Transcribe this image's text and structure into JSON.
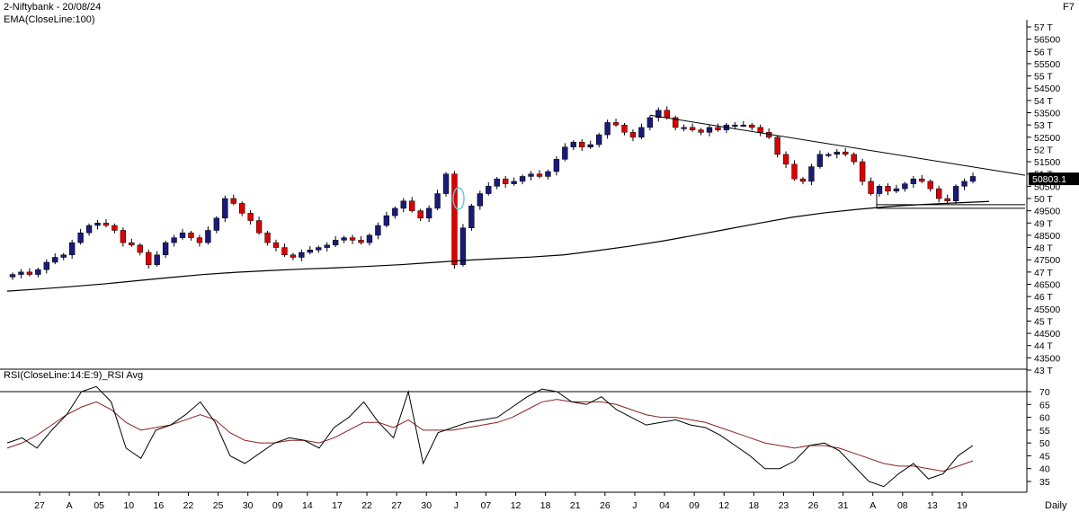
{
  "header": {
    "title": "2-Niftybank - 20/08/24",
    "indicator": "EMA(CloseLine:100)",
    "function_key": "F7",
    "period": "Daily"
  },
  "rsi_panel": {
    "title": "RSI(CloseLine:14:E:9)_RSI Avg"
  },
  "colors": {
    "up_candle": "#1a1a7a",
    "down_candle": "#dd0000",
    "price_line": "#000000",
    "rsi_line": "#000000",
    "rsi_avg_line": "#8b2020",
    "highlight_ellipse": "#5fc8d8",
    "current_tag_bg": "#000000"
  },
  "chart_data": [
    {
      "type": "candlestick",
      "title": "2-Niftybank - 20/08/24",
      "series_name": "EMA(CloseLine:100)",
      "ylim": [
        43000,
        57500
      ],
      "y_ticks": [
        "57 T",
        "56500",
        "56 T",
        "55500",
        "55 T",
        "54500",
        "54 T",
        "53500",
        "53 T",
        "52500",
        "52 T",
        "51500",
        "51 T",
        "50500",
        "50 T",
        "49500",
        "49 T",
        "48500",
        "48 T",
        "47500",
        "47 T",
        "46500",
        "46 T",
        "45500",
        "45 T",
        "44500",
        "44 T",
        "43500",
        "43 T"
      ],
      "current_price": "50803.1",
      "x_labels": [
        "27",
        "A",
        "05",
        "10",
        "16",
        "22",
        "25",
        "30",
        "09",
        "14",
        "17",
        "22",
        "27",
        "30",
        "J",
        "07",
        "12",
        "18",
        "21",
        "26",
        "J",
        "04",
        "09",
        "12",
        "18",
        "23",
        "26",
        "31",
        "A",
        "08",
        "13",
        "19"
      ],
      "closes": [
        46900,
        47000,
        46900,
        47100,
        47400,
        47600,
        47700,
        48200,
        48600,
        48900,
        49000,
        48900,
        48700,
        48200,
        48100,
        47800,
        47300,
        47700,
        48200,
        48400,
        48600,
        48400,
        48200,
        48700,
        49200,
        50000,
        49800,
        49400,
        49100,
        48600,
        48200,
        48000,
        47700,
        47600,
        47800,
        47900,
        48000,
        48100,
        48300,
        48400,
        48300,
        48200,
        48500,
        48900,
        49300,
        49600,
        49900,
        49500,
        49200,
        49600,
        50200,
        51000,
        47300,
        48800,
        49700,
        50200,
        50500,
        50800,
        50600,
        50700,
        50900,
        51000,
        50900,
        51100,
        51600,
        52100,
        52300,
        52100,
        52200,
        52600,
        53100,
        53000,
        52700,
        52500,
        52900,
        53300,
        53600,
        53300,
        52900,
        52900,
        52800,
        52700,
        52900,
        52800,
        53000,
        53000,
        53000,
        52900,
        52700,
        52500,
        51800,
        51400,
        50800,
        50700,
        51300,
        51800,
        51800,
        51900,
        51800,
        51500,
        50700,
        50200,
        50500,
        50300,
        50400,
        50600,
        50800,
        50700,
        50400,
        50000,
        49900,
        50500,
        50700,
        50900
      ],
      "ema": [
        46220,
        46310,
        46410,
        46520,
        46650,
        46780,
        46900,
        46990,
        47060,
        47120,
        47170,
        47230,
        47300,
        47390,
        47480,
        47550,
        47610,
        47700,
        47870,
        48050,
        48260,
        48500,
        48750,
        49000,
        49240,
        49420,
        49560,
        49680,
        49760,
        49820,
        49880
      ]
    },
    {
      "type": "line",
      "title": "RSI(CloseLine:14:E:9)_RSI Avg",
      "ylim": [
        30,
        72
      ],
      "y_ticks": [
        "70",
        "65",
        "60",
        "55",
        "50",
        "45",
        "40",
        "35"
      ],
      "reference_line": 70,
      "rsi": [
        50,
        52,
        48,
        55,
        61,
        70,
        72,
        66,
        48,
        44,
        55,
        57,
        61,
        66,
        58,
        45,
        42,
        46,
        50,
        52,
        51,
        48,
        56,
        60,
        66,
        58,
        52,
        70,
        42,
        54,
        56,
        58,
        59,
        60,
        64,
        68,
        71,
        70,
        66,
        65,
        68,
        63,
        60,
        57,
        58,
        59,
        57,
        56,
        53,
        49,
        45,
        40,
        40,
        43,
        49,
        50,
        47,
        41,
        35,
        33,
        38,
        42,
        36,
        38,
        45,
        49
      ],
      "rsi_avg": [
        48,
        50,
        53,
        57,
        61,
        64,
        66,
        63,
        58,
        55,
        56,
        57,
        59,
        61,
        59,
        54,
        51,
        50,
        50,
        51,
        51,
        50,
        52,
        55,
        58,
        58,
        56,
        59,
        55,
        55,
        55,
        56,
        57,
        58,
        60,
        63,
        66,
        67,
        66,
        66,
        66,
        65,
        63,
        61,
        60,
        60,
        59,
        58,
        56,
        54,
        52,
        50,
        49,
        48,
        49,
        49,
        48,
        46,
        44,
        42,
        41,
        41,
        40,
        39,
        41,
        43
      ]
    }
  ]
}
